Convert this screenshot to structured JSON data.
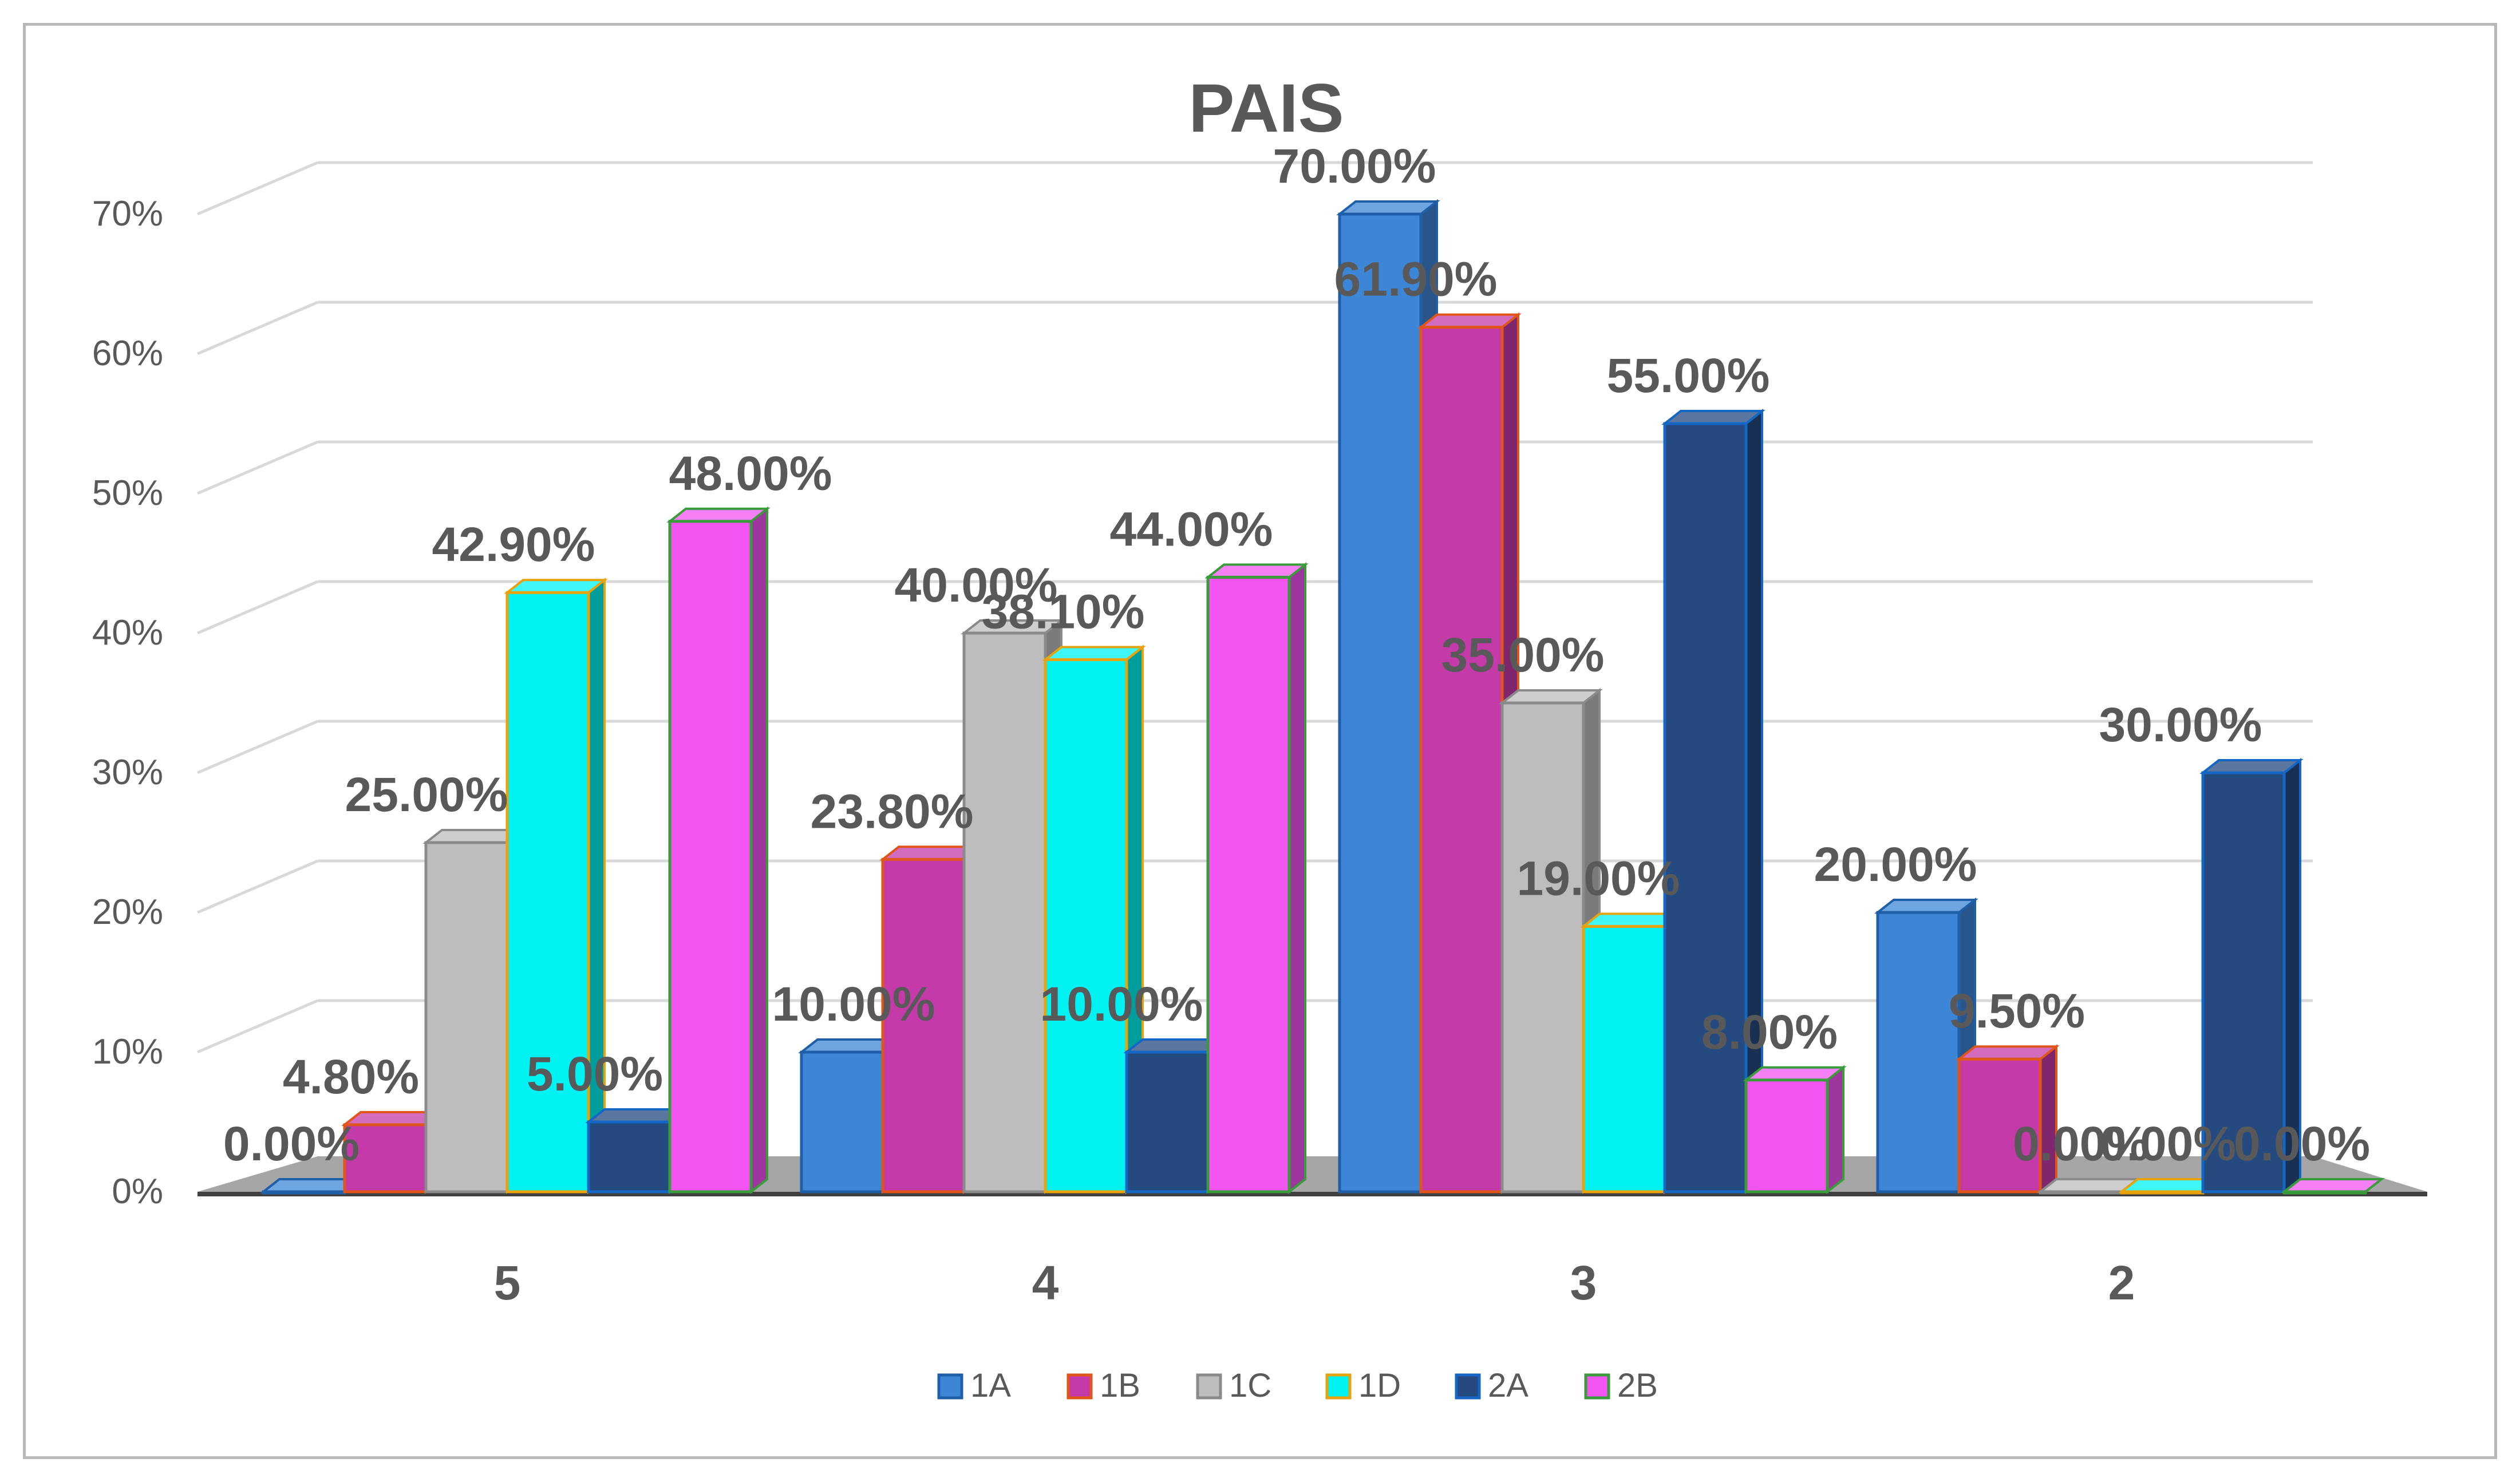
{
  "chart_data": {
    "type": "bar",
    "title": "PAIS",
    "xlabel": "",
    "ylabel": "",
    "ylim": [
      0,
      70
    ],
    "yticks": [
      "0%",
      "10%",
      "20%",
      "30%",
      "40%",
      "50%",
      "60%",
      "70%"
    ],
    "categories": [
      "5",
      "4",
      "3",
      "2"
    ],
    "series": [
      {
        "name": "1A",
        "values": [
          0.0,
          10.0,
          70.0,
          20.0
        ],
        "labels": [
          "0.00%",
          "10.00%",
          "70.00%",
          "20.00%"
        ],
        "color": "#3d85d6",
        "border": "#1f5fa8"
      },
      {
        "name": "1B",
        "values": [
          4.8,
          23.8,
          61.9,
          9.5
        ],
        "labels": [
          "4.80%",
          "23.80%",
          "61.90%",
          "9.50%"
        ],
        "color": "#c43aa8",
        "border": "#e0561a"
      },
      {
        "name": "1C",
        "values": [
          25.0,
          40.0,
          35.0,
          0.0
        ],
        "labels": [
          "25.00%",
          "40.00%",
          "35.00%",
          "0.00%"
        ],
        "color": "#bdbdbd",
        "border": "#8a8a8a"
      },
      {
        "name": "1D",
        "values": [
          42.9,
          38.1,
          19.0,
          0.0
        ],
        "labels": [
          "42.90%",
          "38.10%",
          "19.00%",
          "0.00%"
        ],
        "color": "#00f2f2",
        "border": "#e8a20c"
      },
      {
        "name": "2A",
        "values": [
          5.0,
          10.0,
          55.0,
          30.0
        ],
        "labels": [
          "5.00%",
          "10.00%",
          "55.00%",
          "30.00%"
        ],
        "color": "#244a80",
        "border": "#1467c4"
      },
      {
        "name": "2B",
        "values": [
          48.0,
          44.0,
          8.0,
          0.0
        ],
        "labels": [
          "48.00%",
          "44.00%",
          "8.00%",
          "0.00%"
        ],
        "color": "#f255f2",
        "border": "#3a9b3a"
      }
    ],
    "legend_position": "bottom",
    "grid": true
  }
}
